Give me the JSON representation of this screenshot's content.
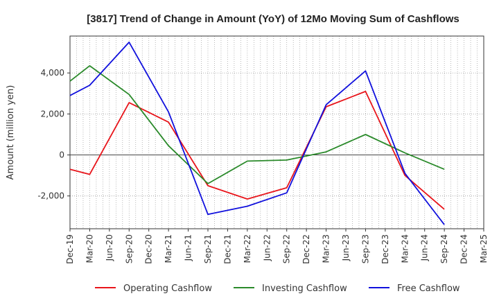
{
  "chart_data": {
    "type": "line",
    "title": "[3817]  Trend of Change in Amount (YoY) of 12Mo Moving Sum of Cashflows",
    "xlabel": "",
    "ylabel": "Amount (million yen)",
    "ylim": [
      -3600,
      5800
    ],
    "yticks": [
      -2000,
      0,
      2000,
      4000
    ],
    "ytick_labels": [
      "-2,000",
      "0",
      "2,000",
      "4,000"
    ],
    "grid": true,
    "legend": "bottom",
    "categories": [
      "Dec-19",
      "Mar-20",
      "Jun-20",
      "Sep-20",
      "Dec-20",
      "Mar-21",
      "Jun-21",
      "Sep-21",
      "Dec-21",
      "Mar-22",
      "Jun-22",
      "Sep-22",
      "Dec-22",
      "Mar-23",
      "Jun-23",
      "Sep-23",
      "Dec-23",
      "Mar-24",
      "Jun-24",
      "Sep-24",
      "Dec-24",
      "Mar-25"
    ],
    "series": [
      {
        "name": "Operating Cashflow",
        "color": "#e8141a",
        "values": [
          -700,
          -950,
          null,
          2550,
          null,
          1600,
          null,
          -1500,
          null,
          -2150,
          null,
          -1600,
          null,
          2350,
          null,
          3100,
          null,
          -1000,
          null,
          -2650,
          null,
          null
        ]
      },
      {
        "name": "Investing Cashflow",
        "color": "#2a8a2a",
        "values": [
          3600,
          4350,
          null,
          2950,
          null,
          450,
          null,
          -1400,
          null,
          -300,
          null,
          -250,
          null,
          150,
          null,
          1000,
          null,
          100,
          null,
          -700,
          null,
          null
        ]
      },
      {
        "name": "Free Cashflow",
        "color": "#1010dd",
        "values": [
          2900,
          3400,
          null,
          5500,
          null,
          2100,
          null,
          -2900,
          null,
          -2500,
          null,
          -1850,
          null,
          2450,
          null,
          4100,
          null,
          -900,
          null,
          -3400,
          null,
          null
        ]
      }
    ]
  }
}
